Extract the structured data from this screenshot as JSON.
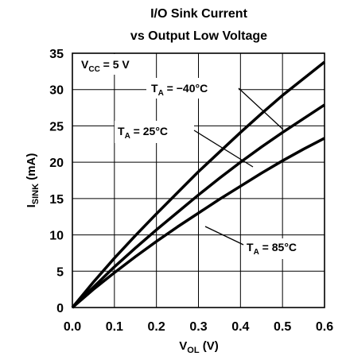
{
  "chart_data": {
    "type": "line",
    "title_line1": "I/O Sink Current",
    "title_line2": "vs Output Low Voltage",
    "ylabel": {
      "main": "I",
      "sub": "SINK",
      "rest": " (mA)"
    },
    "xlabel": {
      "main": "V",
      "sub": "OL",
      "rest": " (V)"
    },
    "xlim": [
      0,
      0.6
    ],
    "ylim": [
      0,
      35
    ],
    "x_ticks": [
      {
        "value": 0.0,
        "label": "0.0"
      },
      {
        "value": 0.1,
        "label": "0.1"
      },
      {
        "value": 0.2,
        "label": "0.2"
      },
      {
        "value": 0.3,
        "label": "0.3"
      },
      {
        "value": 0.4,
        "label": "0.4"
      },
      {
        "value": 0.5,
        "label": "0.5"
      },
      {
        "value": 0.6,
        "label": "0.6"
      }
    ],
    "y_ticks": [
      {
        "value": 0,
        "label": "0"
      },
      {
        "value": 5,
        "label": "5"
      },
      {
        "value": 10,
        "label": "10"
      },
      {
        "value": 15,
        "label": "15"
      },
      {
        "value": 20,
        "label": "20"
      },
      {
        "value": 25,
        "label": "25"
      },
      {
        "value": 30,
        "label": "30"
      },
      {
        "value": 35,
        "label": "35"
      }
    ],
    "grid": true,
    "condition": {
      "main": "V",
      "sub": "CC",
      "rest": " = 5 V"
    },
    "series": [
      {
        "label": {
          "main": "T",
          "sub": "A",
          "rest": " = −40°C"
        },
        "x": [
          0,
          0.05,
          0.1,
          0.15,
          0.2,
          0.25,
          0.3,
          0.35,
          0.4,
          0.45,
          0.5,
          0.55,
          0.6
        ],
        "y": [
          0,
          3.5,
          6.8,
          9.9,
          12.9,
          15.8,
          18.7,
          21.4,
          24.1,
          26.7,
          29.2,
          31.5,
          33.8
        ]
      },
      {
        "label": {
          "main": "T",
          "sub": "A",
          "rest": " = 25°C"
        },
        "x": [
          0,
          0.05,
          0.1,
          0.15,
          0.2,
          0.25,
          0.3,
          0.35,
          0.4,
          0.45,
          0.5,
          0.55,
          0.6
        ],
        "y": [
          0,
          2.8,
          5.6,
          8.2,
          10.7,
          13.1,
          15.5,
          17.8,
          20.0,
          22.1,
          24.1,
          26.0,
          27.9
        ]
      },
      {
        "label": {
          "main": "T",
          "sub": "A",
          "rest": " = 85°C"
        },
        "x": [
          0,
          0.05,
          0.1,
          0.15,
          0.2,
          0.25,
          0.3,
          0.35,
          0.4,
          0.45,
          0.5,
          0.55,
          0.6
        ],
        "y": [
          0,
          2.5,
          4.8,
          7.0,
          9.1,
          11.1,
          13.0,
          14.9,
          16.7,
          18.5,
          20.2,
          21.8,
          23.3
        ]
      }
    ]
  }
}
